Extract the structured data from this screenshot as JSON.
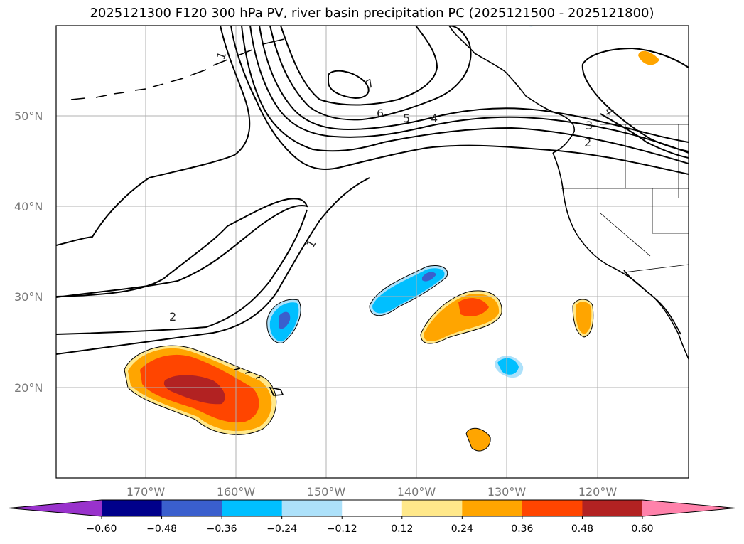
{
  "title": "2025121300 F120 300 hPa PV, river basin precipitation PC (2025121500 - 2025121800)",
  "map": {
    "lon_range": [
      -180,
      -110
    ],
    "lat_range": [
      10,
      60
    ],
    "lat_ticks": [
      {
        "value": 50,
        "label": "50°N"
      },
      {
        "value": 40,
        "label": "40°N"
      },
      {
        "value": 30,
        "label": "30°N"
      },
      {
        "value": 20,
        "label": "20°N"
      }
    ],
    "lon_ticks": [
      {
        "value": -170,
        "label": "170°W"
      },
      {
        "value": -160,
        "label": "160°W"
      },
      {
        "value": -150,
        "label": "150°W"
      },
      {
        "value": -140,
        "label": "140°W"
      },
      {
        "value": -130,
        "label": "130°W"
      },
      {
        "value": -120,
        "label": "120°W"
      }
    ],
    "grid": true,
    "contour_labels": [
      "1",
      "2",
      "3",
      "4",
      "5",
      "6",
      "7",
      "1",
      "2",
      "4"
    ]
  },
  "colorbar": {
    "ticks": [
      "−0.60",
      "−0.48",
      "−0.36",
      "−0.24",
      "−0.12",
      "0.12",
      "0.24",
      "0.36",
      "0.48",
      "0.60"
    ],
    "colors": [
      "#9932CC",
      "#00008B",
      "#3A5FCD",
      "#00BFFF",
      "#ADE1FA",
      "#FFFFFF",
      "#FFE88A",
      "#FFA500",
      "#FF4500",
      "#B22222",
      "#FF82AB"
    ],
    "extend": "both"
  }
}
